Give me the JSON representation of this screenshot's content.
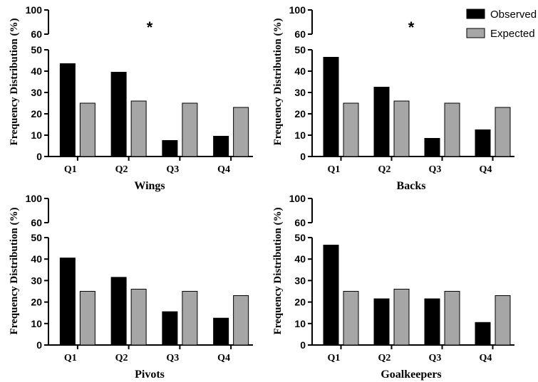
{
  "legend": {
    "position": "top-right",
    "items": [
      {
        "label": "Observed",
        "color": "#000000"
      },
      {
        "label": "Expected",
        "color": "#a6a6a6"
      }
    ]
  },
  "chart_data": [
    {
      "type": "bar",
      "title": "Wings",
      "ylabel": "Frequency Distribution (%)",
      "ylim": [
        0,
        100
      ],
      "axis_break": [
        50,
        60
      ],
      "yticks_lower": [
        0,
        10,
        20,
        30,
        40,
        50
      ],
      "yticks_upper": [
        60,
        100
      ],
      "annotation": "*",
      "categories": [
        "Q1",
        "Q2",
        "Q3",
        "Q4"
      ],
      "series": [
        {
          "name": "Observed",
          "values": [
            43.5,
            39.5,
            7.5,
            9.5
          ]
        },
        {
          "name": "Expected",
          "values": [
            25,
            26,
            25,
            23
          ]
        }
      ]
    },
    {
      "type": "bar",
      "title": "Backs",
      "ylabel": "Frequency Distribution (%)",
      "ylim": [
        0,
        100
      ],
      "axis_break": [
        50,
        60
      ],
      "yticks_lower": [
        0,
        10,
        20,
        30,
        40,
        50
      ],
      "yticks_upper": [
        60,
        100
      ],
      "annotation": "*",
      "categories": [
        "Q1",
        "Q2",
        "Q3",
        "Q4"
      ],
      "series": [
        {
          "name": "Observed",
          "values": [
            46.5,
            32.5,
            8.5,
            12.5
          ]
        },
        {
          "name": "Expected",
          "values": [
            25,
            26,
            25,
            23
          ]
        }
      ]
    },
    {
      "type": "bar",
      "title": "Pivots",
      "ylabel": "Frequency Distribution (%)",
      "ylim": [
        0,
        100
      ],
      "axis_break": [
        50,
        60
      ],
      "yticks_lower": [
        0,
        10,
        20,
        30,
        40,
        50
      ],
      "yticks_upper": [
        60,
        100
      ],
      "annotation": "",
      "categories": [
        "Q1",
        "Q2",
        "Q3",
        "Q4"
      ],
      "series": [
        {
          "name": "Observed",
          "values": [
            40.5,
            31.5,
            15.5,
            12.5
          ]
        },
        {
          "name": "Expected",
          "values": [
            25,
            26,
            25,
            23
          ]
        }
      ]
    },
    {
      "type": "bar",
      "title": "Goalkeepers",
      "ylabel": "Frequency Distribution (%)",
      "ylim": [
        0,
        100
      ],
      "axis_break": [
        50,
        60
      ],
      "yticks_lower": [
        0,
        10,
        20,
        30,
        40,
        50
      ],
      "yticks_upper": [
        60,
        100
      ],
      "annotation": "",
      "categories": [
        "Q1",
        "Q2",
        "Q3",
        "Q4"
      ],
      "series": [
        {
          "name": "Observed",
          "values": [
            46.5,
            21.5,
            21.5,
            10.5
          ]
        },
        {
          "name": "Expected",
          "values": [
            25,
            26,
            25,
            23
          ]
        }
      ]
    }
  ]
}
